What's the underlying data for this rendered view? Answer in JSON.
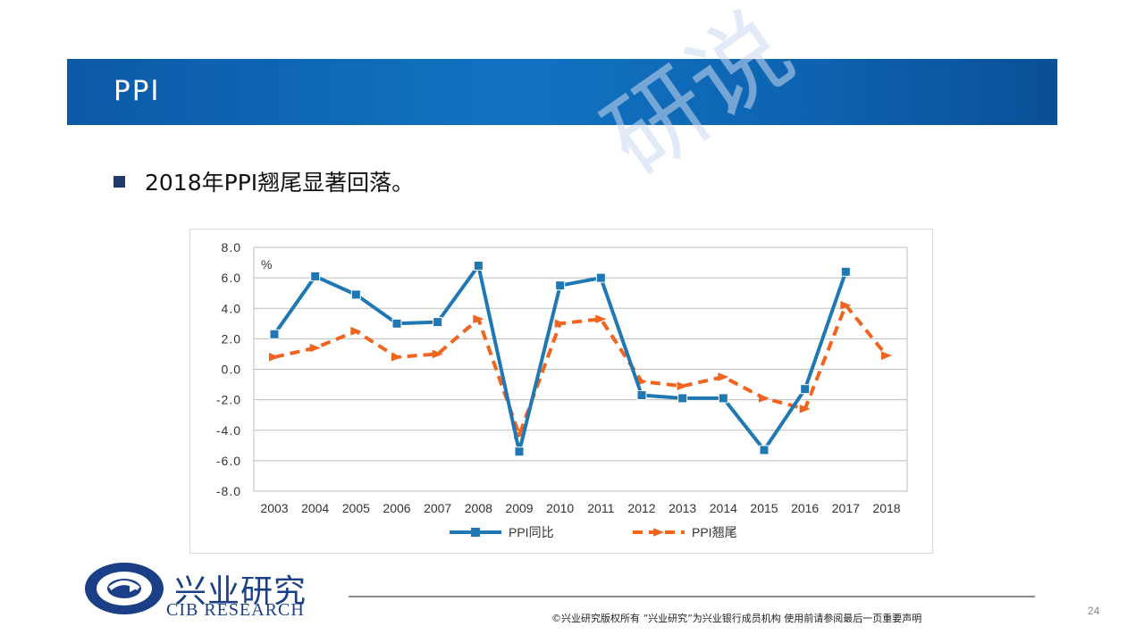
{
  "slide": {
    "title": "PPI",
    "bullet": "2018年PPI翘尾显著回落。",
    "watermark": "研说",
    "page_number": "24"
  },
  "branding": {
    "logo_cn": "兴业研究",
    "logo_en": "CIB RESEARCH",
    "footer": "©兴业研究版权所有 “兴业研究”为兴业银行成员机构 使用前请参阅最后一页重要声明",
    "brand_color": "#1a3f86"
  },
  "chart_data": {
    "type": "line",
    "unit_label": "%",
    "categories": [
      "2003",
      "2004",
      "2005",
      "2006",
      "2007",
      "2008",
      "2009",
      "2010",
      "2011",
      "2012",
      "2013",
      "2014",
      "2015",
      "2016",
      "2017",
      "2018"
    ],
    "ylim": [
      -8.0,
      8.0
    ],
    "yticks": [
      "8.0",
      "6.0",
      "4.0",
      "2.0",
      "0.0",
      "-2.0",
      "-4.0",
      "-6.0",
      "-8.0"
    ],
    "grid": true,
    "legend_position": "bottom",
    "series": [
      {
        "name": "PPI同比",
        "color": "#1f77b4",
        "style": "solid-square-markers",
        "values": [
          2.3,
          6.1,
          4.9,
          3.0,
          3.1,
          6.8,
          -5.4,
          5.5,
          6.0,
          -1.7,
          -1.9,
          -1.9,
          -5.3,
          -1.3,
          6.4,
          null
        ]
      },
      {
        "name": "PPI翘尾",
        "color": "#f0641e",
        "style": "dashed-arrow-markers",
        "values": [
          0.8,
          1.4,
          2.5,
          0.8,
          1.0,
          3.3,
          -4.3,
          3.0,
          3.3,
          -0.8,
          -1.1,
          -0.5,
          -1.9,
          -2.6,
          4.2,
          0.9
        ]
      }
    ]
  }
}
